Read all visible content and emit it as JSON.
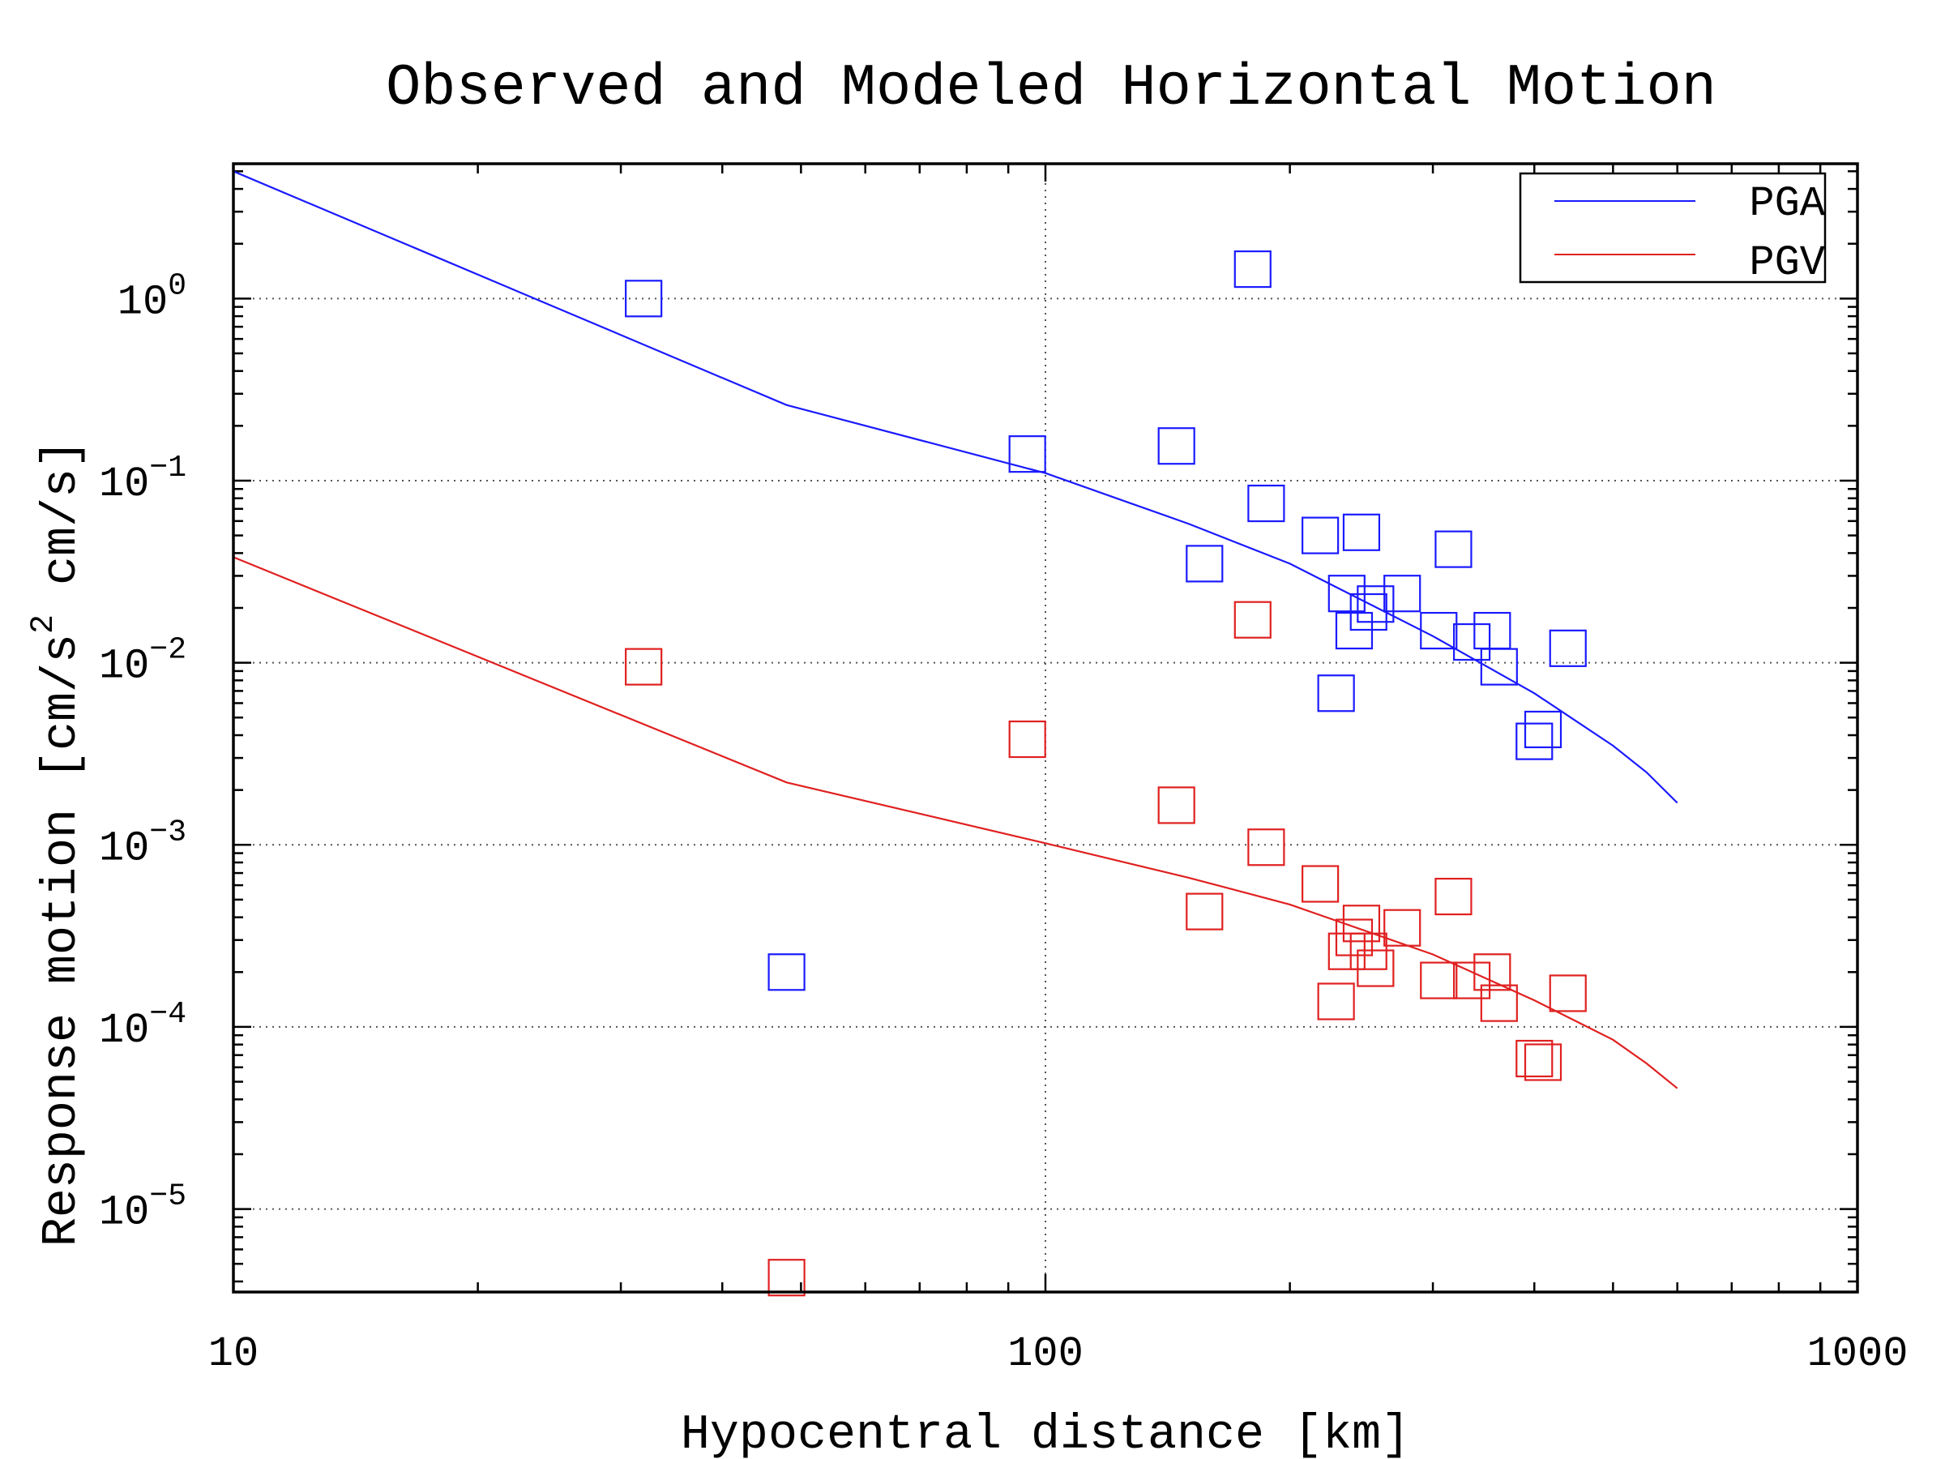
{
  "chart_data": {
    "type": "scatter",
    "title": "Observed and Modeled Horizontal Motion",
    "xlabel": "Hypocentral distance [km]",
    "ylabel": "Response motion [cm/s^2 cm/s]",
    "ylabel_parts": {
      "before": "Response motion [cm/s",
      "sup": "2",
      "after": " cm/s]"
    },
    "xscale": "log",
    "yscale": "log",
    "xlim": [
      10,
      1000
    ],
    "ylim": [
      3.5e-06,
      5.5
    ],
    "grid": true,
    "legend_position": "top-right",
    "x_ticks": [
      {
        "value": 10,
        "label": "10"
      },
      {
        "value": 100,
        "label": "100"
      },
      {
        "value": 1000,
        "label": "1000"
      }
    ],
    "y_ticks": [
      {
        "value": 1,
        "base": "10",
        "exp": "0"
      },
      {
        "value": 0.1,
        "base": "10",
        "exp": "−1"
      },
      {
        "value": 0.01,
        "base": "10",
        "exp": "−2"
      },
      {
        "value": 0.001,
        "base": "10",
        "exp": "−3"
      },
      {
        "value": 0.0001,
        "base": "10",
        "exp": "−4"
      },
      {
        "value": 1e-05,
        "base": "10",
        "exp": "−5"
      }
    ],
    "series": [
      {
        "name": "PGA",
        "color": "#1a1aff",
        "line_x": [
          10,
          48,
          100,
          150,
          200,
          300,
          400,
          500,
          550,
          600
        ],
        "line_y": [
          5.0,
          0.26,
          0.11,
          0.058,
          0.035,
          0.014,
          0.0068,
          0.0035,
          0.0025,
          0.0017
        ],
        "points": [
          [
            32,
            1.0
          ],
          [
            48,
            0.0002
          ],
          [
            95,
            0.14
          ],
          [
            145,
            0.155
          ],
          [
            157,
            0.035
          ],
          [
            180,
            1.45
          ],
          [
            187,
            0.075
          ],
          [
            218,
            0.05
          ],
          [
            228,
            0.0068
          ],
          [
            235,
            0.024
          ],
          [
            240,
            0.015
          ],
          [
            245,
            0.052
          ],
          [
            250,
            0.019
          ],
          [
            255,
            0.021
          ],
          [
            275,
            0.024
          ],
          [
            305,
            0.015
          ],
          [
            318,
            0.042
          ],
          [
            335,
            0.013
          ],
          [
            355,
            0.015
          ],
          [
            362,
            0.0095
          ],
          [
            400,
            0.0037
          ],
          [
            410,
            0.0043
          ],
          [
            440,
            0.012
          ]
        ]
      },
      {
        "name": "PGV",
        "color": "#e02020",
        "line_x": [
          10,
          48,
          100,
          150,
          200,
          300,
          400,
          500,
          550,
          600
        ],
        "line_y": [
          0.038,
          0.0022,
          0.00102,
          0.00066,
          0.00047,
          0.00025,
          0.00014,
          8.5e-05,
          6.3e-05,
          4.6e-05
        ],
        "points": [
          [
            32,
            0.0095
          ],
          [
            48,
            4.2e-06
          ],
          [
            95,
            0.0038
          ],
          [
            145,
            0.00165
          ],
          [
            157,
            0.00043
          ],
          [
            180,
            0.0172
          ],
          [
            187,
            0.00097
          ],
          [
            218,
            0.00061
          ],
          [
            228,
            0.000138
          ],
          [
            235,
            0.00026
          ],
          [
            240,
            0.00031
          ],
          [
            245,
            0.00037
          ],
          [
            250,
            0.00026
          ],
          [
            255,
            0.00021
          ],
          [
            275,
            0.00035
          ],
          [
            305,
            0.00018
          ],
          [
            318,
            0.00052
          ],
          [
            335,
            0.00018
          ],
          [
            355,
            0.0002
          ],
          [
            362,
            0.000135
          ],
          [
            400,
            6.7e-05
          ],
          [
            410,
            6.4e-05
          ],
          [
            440,
            0.000153
          ]
        ]
      }
    ]
  }
}
